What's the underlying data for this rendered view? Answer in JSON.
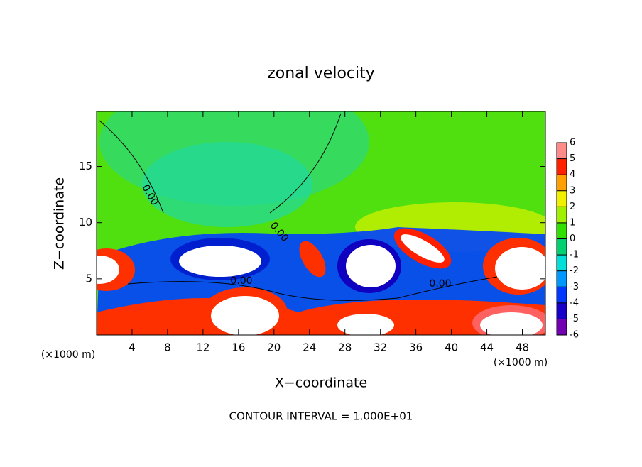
{
  "chart_data": {
    "type": "contour",
    "title": "zonal velocity",
    "xlabel": "X−coordinate",
    "ylabel": "Z−coordinate",
    "x_unit": "(×1000 m)",
    "y_unit": "(×1000 m)",
    "footer": "CONTOUR INTERVAL = 1.000E+01",
    "xlim": [
      0,
      50.6
    ],
    "ylim": [
      0,
      19.9
    ],
    "xticks": [
      4,
      8,
      12,
      16,
      20,
      24,
      28,
      32,
      36,
      40,
      44,
      48
    ],
    "yticks": [
      5,
      10,
      15
    ],
    "contour_labels": [
      "0.00",
      "0.00",
      "0.00",
      "0.00"
    ],
    "colorbar": {
      "levels": [
        -6,
        -5,
        -4,
        -3,
        -2,
        -1,
        0,
        1,
        2,
        3,
        4,
        5,
        6
      ],
      "colors": [
        "#7000b0",
        "#1800c8",
        "#0038ff",
        "#0098ff",
        "#00e0d8",
        "#00d070",
        "#30e000",
        "#a0f000",
        "#f0f000",
        "#ffa000",
        "#ff2000",
        "#ff8a8a"
      ]
    }
  }
}
